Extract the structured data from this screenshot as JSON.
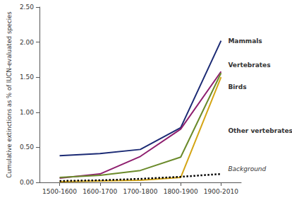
{
  "chart_data": {
    "type": "line",
    "categories": [
      "1500-1600",
      "1600-1700",
      "1700-1800",
      "1800-1900",
      "1900-2010"
    ],
    "y_label": "Cumulative extinctions as % of IUCN-evaluated species",
    "ylim": [
      0,
      2.5
    ],
    "yticks": [
      {
        "value": 0,
        "label": "0.00"
      },
      {
        "value": 0.5,
        "label": "0.50"
      },
      {
        "value": 1,
        "label": "1.00"
      },
      {
        "value": 1.5,
        "label": "1.50"
      },
      {
        "value": 2,
        "label": "2.00"
      },
      {
        "value": 2.5,
        "label": "2.50"
      }
    ],
    "grid": false,
    "series": [
      {
        "name": "Mammals",
        "color": "#1b2a74",
        "line_style": "solid",
        "values": [
          0.38,
          0.41,
          0.47,
          0.78,
          2.02
        ]
      },
      {
        "name": "Vertebrates",
        "color": "#8e1e6e",
        "line_style": "solid",
        "values": [
          0.06,
          0.12,
          0.37,
          0.76,
          1.58
        ]
      },
      {
        "name": "Birds",
        "color": "#6a8a2a",
        "line_style": "solid",
        "values": [
          0.07,
          0.1,
          0.17,
          0.36,
          1.56
        ]
      },
      {
        "name": "Other vertebrates",
        "color": "#d4a514",
        "line_style": "solid",
        "values": [
          0.01,
          0.02,
          0.03,
          0.07,
          1.5
        ]
      },
      {
        "name": "Background",
        "color": "#000000",
        "line_style": "dotted",
        "values": [
          0.02,
          0.03,
          0.05,
          0.08,
          0.12
        ]
      }
    ]
  }
}
